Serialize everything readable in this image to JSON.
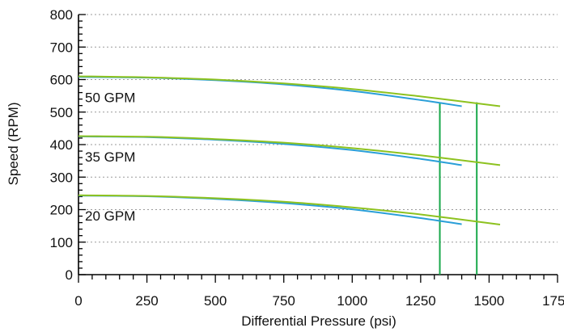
{
  "chart_data": {
    "type": "line",
    "title": "",
    "xlabel": "Differential Pressure (psi)",
    "ylabel": "Speed (RPM)",
    "xlim": [
      0,
      1750
    ],
    "ylim": [
      0,
      800
    ],
    "x_ticks": [
      0,
      250,
      500,
      750,
      1000,
      1250,
      1500,
      1750
    ],
    "y_ticks": [
      0,
      100,
      200,
      300,
      400,
      500,
      600,
      700,
      800
    ],
    "x_tick_labels": [
      "0",
      "250",
      "500",
      "750",
      "1000",
      "1250",
      "1500",
      "1750"
    ],
    "y_tick_labels": [
      "0",
      "100",
      "200",
      "300",
      "400",
      "500",
      "600",
      "700",
      "800"
    ],
    "grid": "horizontal-dotted",
    "colors": {
      "blue": "#2a9fd8",
      "lime": "#8dc21f",
      "green": "#19a84a"
    },
    "groups": [
      {
        "label": "50 GPM",
        "blue": {
          "x": [
            0,
            250,
            500,
            750,
            1000,
            1250,
            1400
          ],
          "y": [
            608,
            606,
            598,
            585,
            565,
            537,
            518
          ]
        },
        "lime": {
          "x": [
            0,
            250,
            500,
            750,
            1000,
            1250,
            1540
          ],
          "y": [
            610,
            607,
            600,
            588,
            571,
            548,
            518
          ]
        }
      },
      {
        "label": "35 GPM",
        "blue": {
          "x": [
            0,
            250,
            500,
            750,
            1000,
            1250,
            1400
          ],
          "y": [
            425,
            423,
            415,
            402,
            383,
            356,
            337
          ]
        },
        "lime": {
          "x": [
            0,
            250,
            500,
            750,
            1000,
            1250,
            1540
          ],
          "y": [
            426,
            424,
            417,
            406,
            389,
            367,
            337
          ]
        }
      },
      {
        "label": "20 GPM",
        "blue": {
          "x": [
            0,
            250,
            500,
            750,
            1000,
            1250,
            1400
          ],
          "y": [
            243,
            241,
            233,
            220,
            201,
            174,
            155
          ]
        },
        "lime": {
          "x": [
            0,
            250,
            500,
            750,
            1000,
            1250,
            1540
          ],
          "y": [
            244,
            242,
            235,
            224,
            207,
            185,
            154
          ]
        }
      }
    ],
    "vertical_lines": [
      {
        "x": 1320,
        "y_top": 530
      },
      {
        "x": 1455,
        "y_top": 530
      }
    ]
  }
}
